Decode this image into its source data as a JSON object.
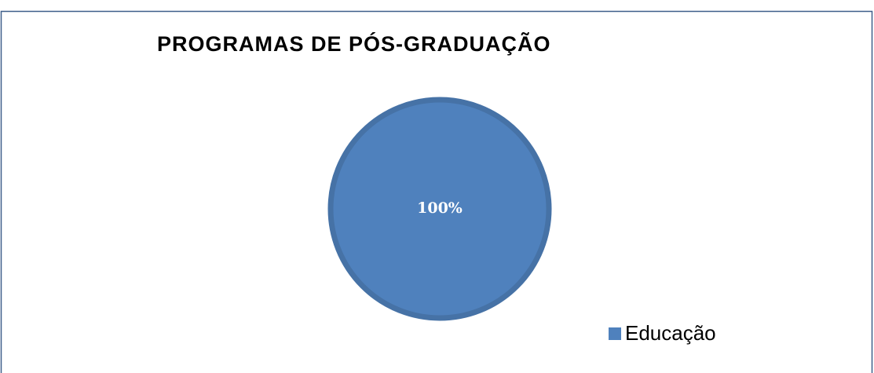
{
  "chart_data": {
    "type": "pie",
    "title": "PROGRAMAS DE PÓS-GRADUAÇÃO",
    "categories": [
      "Educação"
    ],
    "values": [
      100
    ],
    "value_labels": [
      "100%"
    ],
    "colors": [
      "#4f81bd"
    ],
    "legend": "bottom-right"
  }
}
